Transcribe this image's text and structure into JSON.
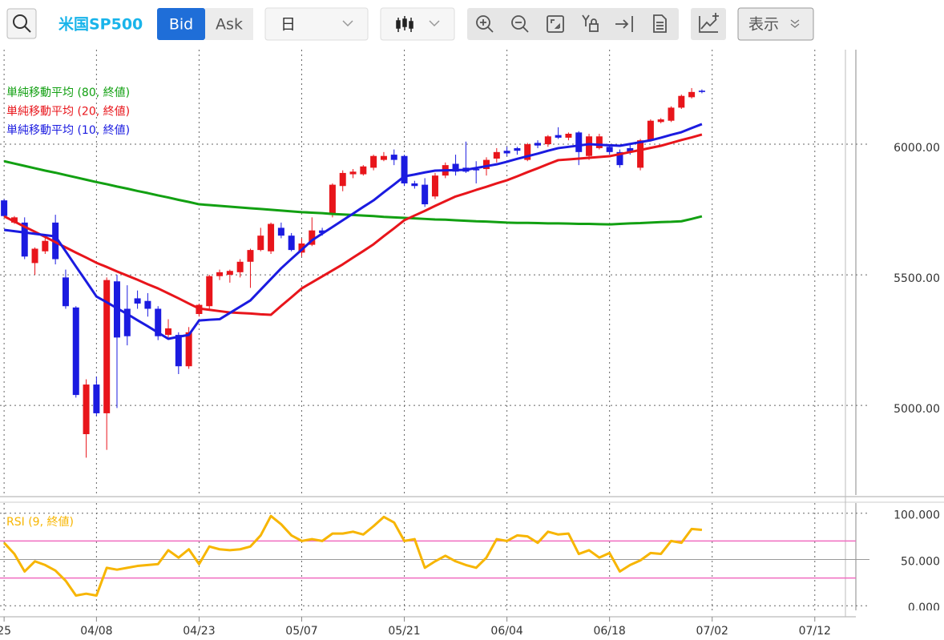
{
  "toolbar": {
    "symbol": "米国SP500",
    "bid": "Bid",
    "ask": "Ask",
    "timeframe": "日",
    "display": "表示"
  },
  "chart_data": [
    {
      "type": "candlestick",
      "up_color": "#e8151b",
      "down_color": "#1b1be0",
      "xlim": [
        -0.4,
        83
      ],
      "ylim": [
        4657,
        6362
      ],
      "xticks": [
        {
          "value": 0,
          "label": "25"
        },
        {
          "value": 9,
          "label": "04/08"
        },
        {
          "value": 19,
          "label": "04/23"
        },
        {
          "value": 29,
          "label": "05/07"
        },
        {
          "value": 39,
          "label": "05/21"
        },
        {
          "value": 49,
          "label": "06/04"
        },
        {
          "value": 59,
          "label": "06/18"
        },
        {
          "value": 69,
          "label": "07/02"
        },
        {
          "value": 79,
          "label": "07/12"
        }
      ],
      "yticks": [
        {
          "value": 5000,
          "label": "5000.00"
        },
        {
          "value": 5500,
          "label": "5500.00"
        },
        {
          "value": 6000,
          "label": "6000.00"
        }
      ],
      "grid": true,
      "open": [
        5785,
        5700,
        5700,
        5545,
        5590,
        5700,
        5490,
        5375,
        4890,
        5080,
        4970,
        5475,
        5370,
        5410,
        5400,
        5370,
        5270,
        5270,
        5150,
        5350,
        5380,
        5495,
        5500,
        5510,
        5550,
        5595,
        5590,
        5680,
        5650,
        5585,
        5615,
        5670,
        5730,
        5840,
        5885,
        5885,
        5910,
        5940,
        5960,
        5955,
        5850,
        5845,
        5800,
        5880,
        5925,
        5910,
        5905,
        5905,
        5945,
        5975,
        5985,
        5940,
        6005,
        6000,
        6035,
        6025,
        6045,
        5955,
        5985,
        5990,
        5970,
        5985,
        5910,
        6015,
        6085,
        6090,
        6140,
        6180,
        6205
      ],
      "high": [
        5790,
        5725,
        5720,
        5605,
        5640,
        5730,
        5520,
        5380,
        5100,
        5110,
        5490,
        5500,
        5460,
        5440,
        5430,
        5380,
        5330,
        5280,
        5300,
        5390,
        5500,
        5520,
        5520,
        5560,
        5600,
        5680,
        5700,
        5700,
        5660,
        5640,
        5720,
        5680,
        5850,
        5900,
        5905,
        5920,
        5960,
        5970,
        5980,
        5960,
        5860,
        5870,
        5890,
        5930,
        5960,
        6010,
        5935,
        5950,
        5985,
        5990,
        5990,
        6005,
        6015,
        6035,
        6065,
        6045,
        6050,
        6040,
        6040,
        6000,
        5980,
        6000,
        6020,
        6095,
        6100,
        6145,
        6190,
        6215,
        6210
      ],
      "low": [
        5720,
        5695,
        5560,
        5500,
        5580,
        5540,
        5370,
        5030,
        4800,
        4960,
        4830,
        4990,
        5230,
        5370,
        5340,
        5250,
        5260,
        5120,
        5140,
        5340,
        5370,
        5480,
        5470,
        5490,
        5450,
        5590,
        5580,
        5640,
        5590,
        5570,
        5610,
        5650,
        5720,
        5820,
        5870,
        5880,
        5900,
        5935,
        5920,
        5840,
        5830,
        5760,
        5790,
        5870,
        5880,
        5890,
        5850,
        5880,
        5930,
        5955,
        5960,
        5935,
        5985,
        5990,
        6020,
        6015,
        5920,
        5940,
        5980,
        5960,
        5910,
        5960,
        5900,
        6010,
        6080,
        6085,
        6135,
        6175,
        6195
      ],
      "close": [
        5725,
        5720,
        5570,
        5600,
        5630,
        5560,
        5380,
        5040,
        5080,
        4970,
        5480,
        5260,
        5265,
        5390,
        5370,
        5265,
        5295,
        5150,
        5280,
        5385,
        5495,
        5510,
        5515,
        5550,
        5595,
        5650,
        5695,
        5650,
        5595,
        5620,
        5670,
        5660,
        5845,
        5890,
        5895,
        5915,
        5955,
        5955,
        5940,
        5850,
        5840,
        5770,
        5880,
        5920,
        5895,
        5895,
        5900,
        5940,
        5970,
        5965,
        5975,
        6000,
        5995,
        6030,
        6025,
        6040,
        5970,
        6030,
        6030,
        5970,
        5920,
        5970,
        6015,
        6090,
        6095,
        6140,
        6185,
        6200,
        6200
      ],
      "overlays": [
        {
          "name": "単純移動平均 (80, 終値)",
          "color": "#12a012",
          "values": [
            5935,
            5926,
            5917,
            5908,
            5899,
            5891,
            5882,
            5873,
            5864,
            5855,
            5847,
            5838,
            5830,
            5821,
            5813,
            5804,
            5796,
            5787,
            5779,
            5770,
            5767,
            5764,
            5761,
            5758,
            5755,
            5752,
            5749,
            5746,
            5743,
            5740,
            5738,
            5736,
            5733,
            5731,
            5729,
            5727,
            5725,
            5722,
            5720,
            5718,
            5716,
            5714,
            5712,
            5711,
            5709,
            5707,
            5705,
            5704,
            5702,
            5700,
            5699,
            5699,
            5698,
            5697,
            5697,
            5696,
            5695,
            5695,
            5694,
            5693,
            5695,
            5697,
            5698,
            5700,
            5702,
            5703,
            5705,
            5714,
            5724
          ]
        },
        {
          "name": "単純移動平均 (20, 終値)",
          "color": "#e8151b",
          "values": [
            5724,
            5704,
            5684,
            5665,
            5645,
            5625,
            5605,
            5585,
            5566,
            5546,
            5530,
            5513,
            5497,
            5481,
            5464,
            5448,
            5429,
            5410,
            5390,
            5371,
            5366,
            5361,
            5356,
            5354,
            5352,
            5349,
            5347,
            5381,
            5414,
            5448,
            5471,
            5494,
            5517,
            5540,
            5566,
            5591,
            5617,
            5648,
            5678,
            5709,
            5727,
            5745,
            5764,
            5782,
            5800,
            5812,
            5825,
            5837,
            5850,
            5862,
            5877,
            5893,
            5908,
            5924,
            5939,
            5942,
            5945,
            5948,
            5951,
            5954,
            5962,
            5970,
            5978,
            5986,
            5994,
            6005,
            6016,
            6026,
            6037
          ]
        },
        {
          "name": "単純移動平均 (10, 終値)",
          "color": "#1b1be0",
          "values": [
            5672,
            5667,
            5662,
            5657,
            5652,
            5647,
            5590,
            5532,
            5475,
            5417,
            5395,
            5372,
            5350,
            5326,
            5303,
            5279,
            5255,
            5263,
            5270,
            5325,
            5328,
            5330,
            5354,
            5378,
            5402,
            5443,
            5484,
            5525,
            5561,
            5596,
            5632,
            5658,
            5683,
            5709,
            5734,
            5760,
            5785,
            5816,
            5846,
            5877,
            5884,
            5892,
            5899,
            5900,
            5901,
            5902,
            5909,
            5916,
            5923,
            5933,
            5944,
            5954,
            5964,
            5975,
            5985,
            5990,
            5995,
            6000,
            5998,
            5996,
            5994,
            6001,
            6008,
            6015,
            6025,
            6036,
            6046,
            6062,
            6077
          ]
        }
      ]
    },
    {
      "type": "line",
      "name": "RSI (9, 終値)",
      "color": "#f7b500",
      "ylim": [
        -5,
        111
      ],
      "yticks": [
        {
          "value": 0,
          "label": "0.000"
        },
        {
          "value": 50,
          "label": "50.000"
        },
        {
          "value": 100,
          "label": "100.000"
        }
      ],
      "hlines": [
        70,
        30
      ],
      "hline_color": "#f06cc0",
      "values": [
        68,
        56,
        37,
        48,
        44,
        38,
        27,
        11,
        13,
        11,
        41,
        39,
        41,
        43,
        44,
        45,
        60,
        52,
        61,
        45,
        64,
        61,
        60,
        61,
        64,
        76,
        97,
        88,
        76,
        70,
        72,
        70,
        78,
        78,
        80,
        77,
        86,
        96,
        90,
        70,
        72,
        41,
        48,
        54,
        48,
        44,
        41,
        52,
        72,
        70,
        76,
        75,
        68,
        80,
        77,
        78,
        56,
        60,
        52,
        57,
        37,
        44,
        49,
        57,
        56,
        70,
        68,
        83,
        82
      ]
    }
  ]
}
